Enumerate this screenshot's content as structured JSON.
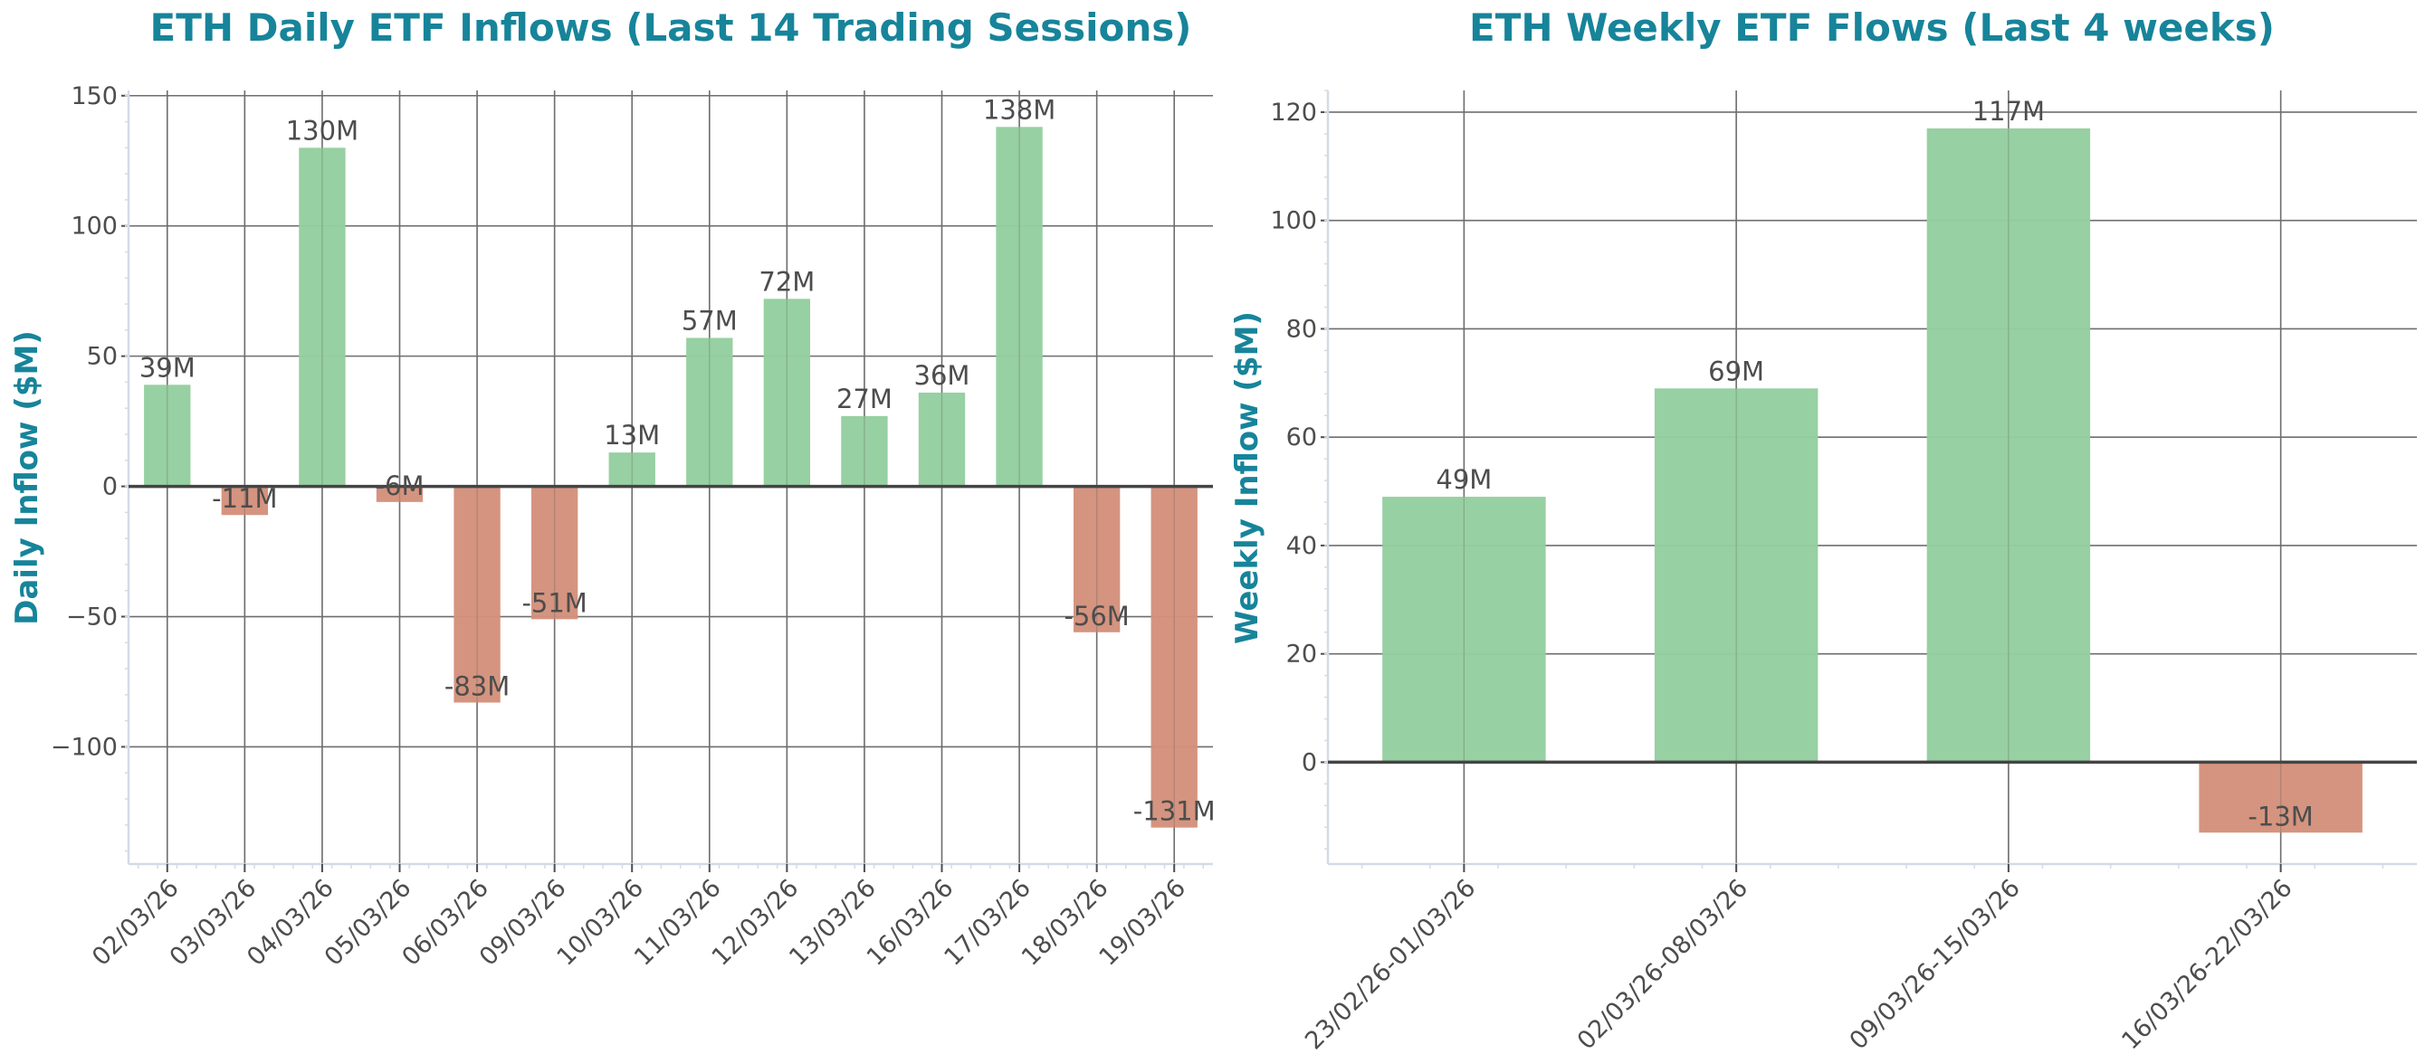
{
  "charts": [
    {
      "title": "ETH Daily ETF Inflows (Last 14 Trading Sessions)",
      "ylabel": "Daily Inflow ($M)"
    },
    {
      "title": "ETH Weekly ETF Flows (Last 4 weeks)",
      "ylabel": "Weekly Inflow ($M)"
    }
  ],
  "colors": {
    "title": "#17849a",
    "positive": "#94ce9f",
    "negative": "#d4917b",
    "grid": "#6e6e6e",
    "zero_line": "#444444",
    "axis_spine": "#d3dbe8",
    "text": "#4d4d4d"
  },
  "chart_data": [
    {
      "type": "bar",
      "title": "ETH Daily ETF Inflows (Last 14 Trading Sessions)",
      "xlabel": "",
      "ylabel": "Daily Inflow ($M)",
      "categories": [
        "02/03/26",
        "03/03/26",
        "04/03/26",
        "05/03/26",
        "06/03/26",
        "09/03/26",
        "10/03/26",
        "11/03/26",
        "12/03/26",
        "13/03/26",
        "16/03/26",
        "17/03/26",
        "18/03/26",
        "19/03/26"
      ],
      "values": [
        39,
        -11,
        130,
        -6,
        -83,
        -51,
        13,
        57,
        72,
        27,
        36,
        138,
        -56,
        -131
      ],
      "labels": [
        "39M",
        "-11M",
        "130M",
        "-6M",
        "-83M",
        "-51M",
        "13M",
        "57M",
        "72M",
        "27M",
        "36M",
        "138M",
        "-56M",
        "-131M"
      ],
      "yticks": [
        -100,
        -50,
        0,
        50,
        100,
        150
      ],
      "ytick_labels": [
        "−100",
        "−50",
        "0",
        "50",
        "100",
        "150"
      ],
      "ylim": [
        -145,
        152
      ],
      "grid": true,
      "legend": null
    },
    {
      "type": "bar",
      "title": "ETH Weekly ETF Flows (Last 4 weeks)",
      "xlabel": "",
      "ylabel": "Weekly Inflow ($M)",
      "categories": [
        "23/02/26-01/03/26",
        "02/03/26-08/03/26",
        "09/03/26-15/03/26",
        "16/03/26-22/03/26"
      ],
      "values": [
        49,
        69,
        117,
        -13
      ],
      "labels": [
        "49M",
        "69M",
        "117M",
        "-13M"
      ],
      "yticks": [
        0,
        20,
        40,
        60,
        80,
        100,
        120
      ],
      "ytick_labels": [
        "0",
        "20",
        "40",
        "60",
        "80",
        "100",
        "120"
      ],
      "ylim": [
        -18.8,
        124
      ],
      "grid": true,
      "legend": null
    }
  ]
}
